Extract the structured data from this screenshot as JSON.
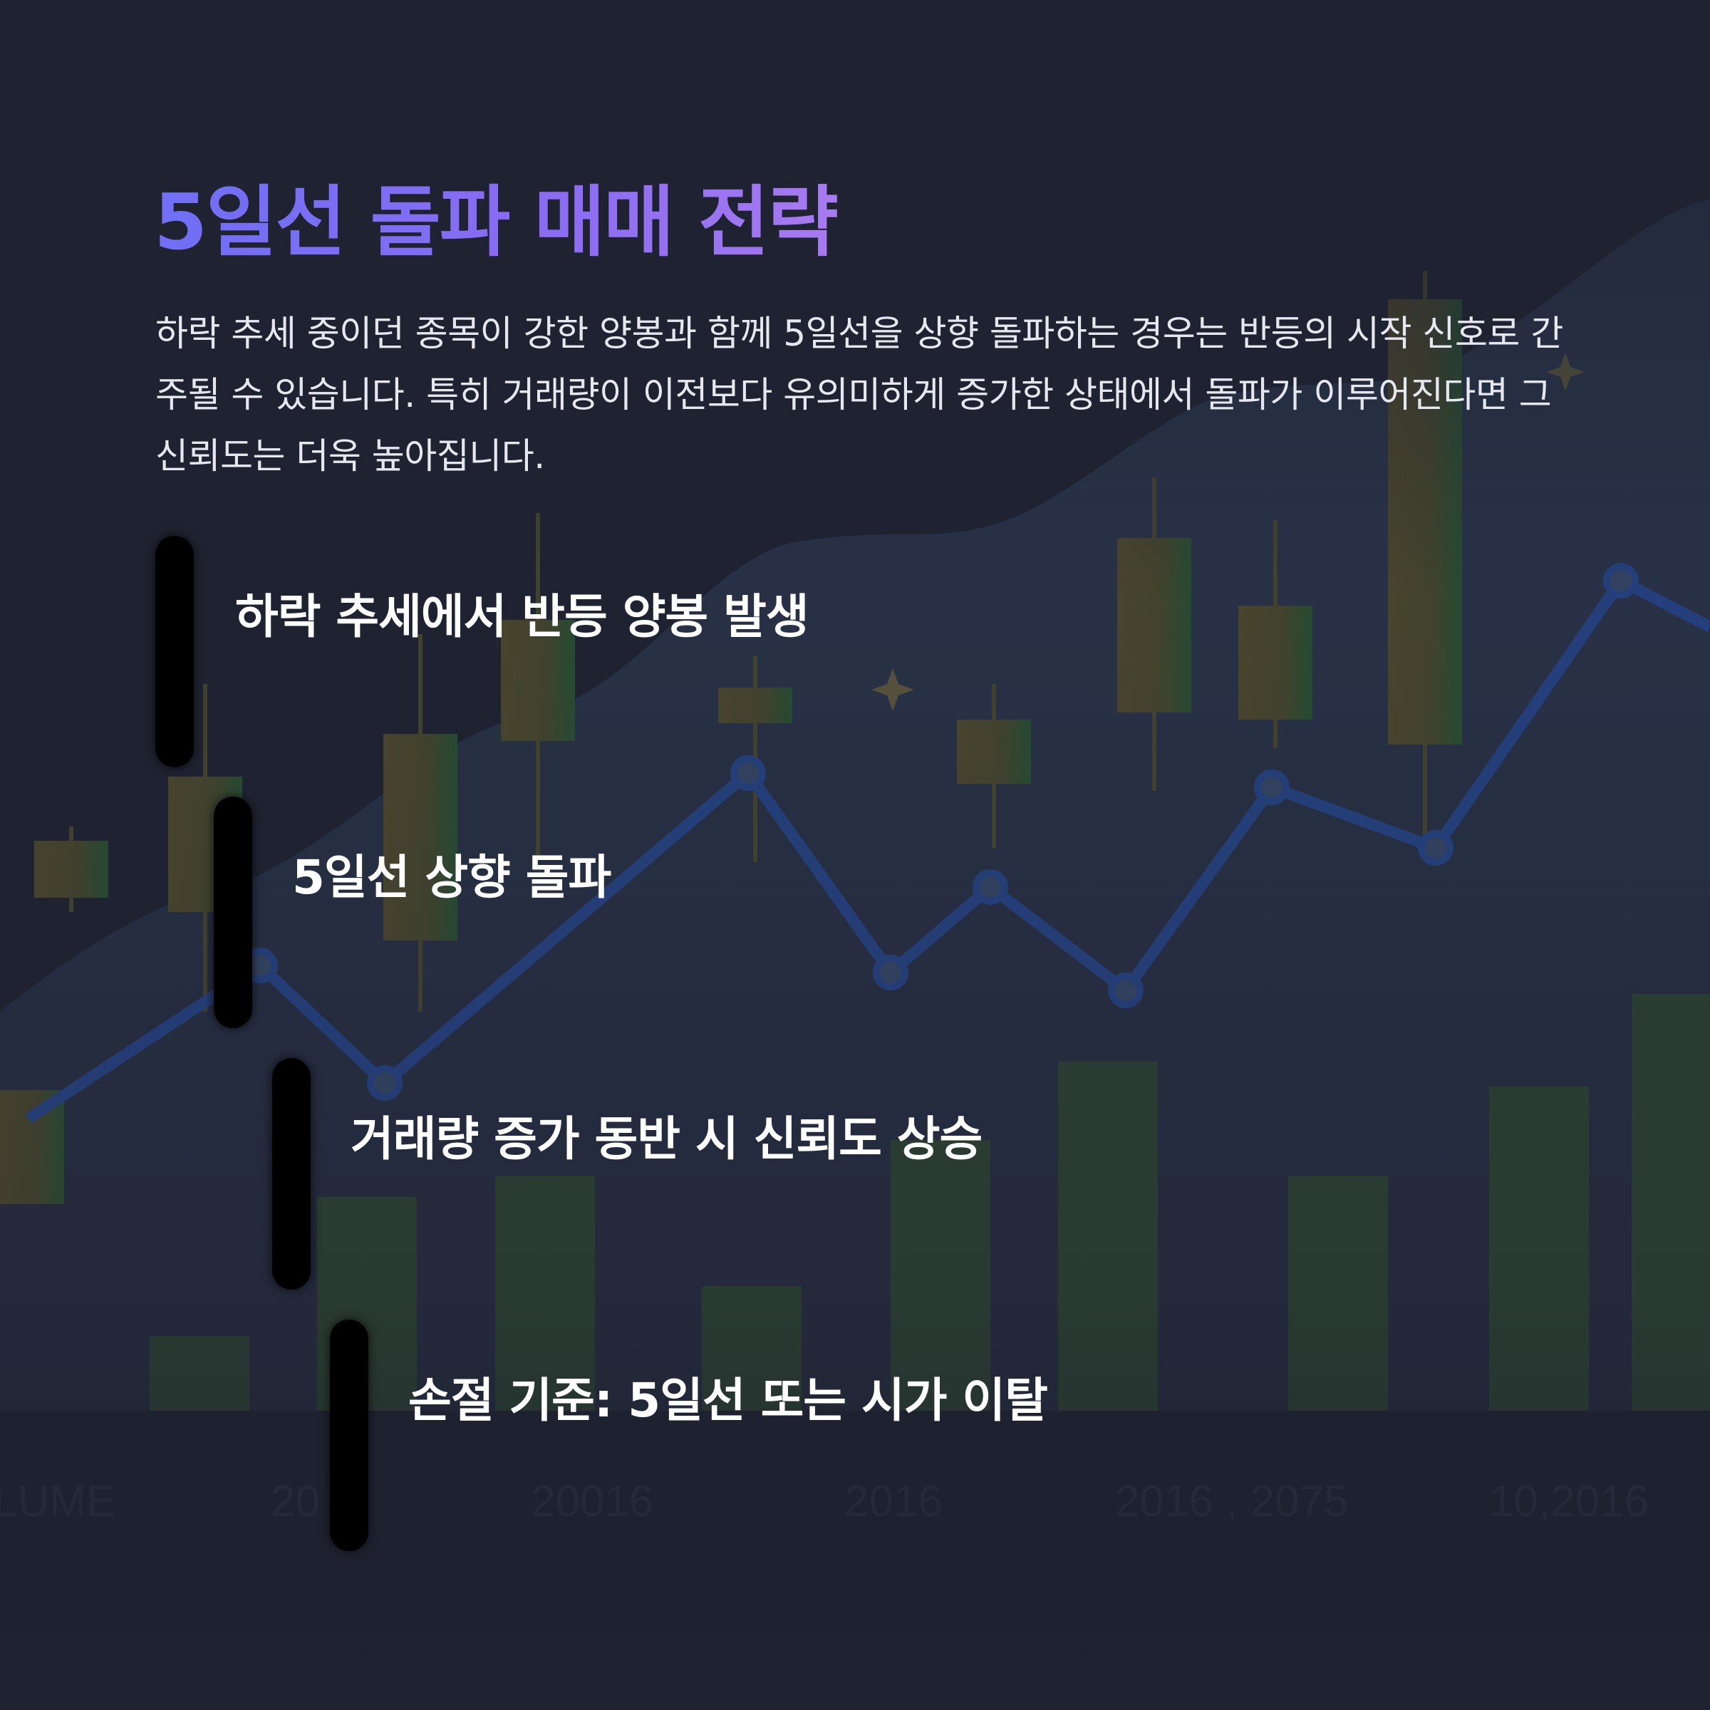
{
  "title": "5일선 돌파 매매 전략",
  "description": "하락 추세 중이던 종목이 강한 양봉과 함께 5일선을 상향 돌파하는 경우는 반등의 시작 신호로 간주될 수 있습니다. 특히 거래량이 이전보다 유의미하게 증가한 상태에서 돌파가 이루어진다면 그 신뢰도는 더욱 높아집니다.",
  "steps": [
    {
      "label": "하락 추세에서 반등 양봉 발생"
    },
    {
      "label": "5일선 상향 돌파"
    },
    {
      "label": "거래량 증가 동반 시 신뢰도 상승"
    },
    {
      "label": "손절 기준: 5일선 또는 시가 이탈"
    }
  ],
  "background_axis_labels": [
    "LUME",
    "20",
    "20016",
    "2016",
    "2016 , 2075",
    "10,2016"
  ],
  "colors": {
    "background": "#1f2230",
    "title_gradient_start": "#6f6ff5",
    "title_gradient_end": "#a77af0",
    "line": "#2b63d6",
    "candle_up": "#2f7d35",
    "candle_gold": "#6b6a2a"
  }
}
